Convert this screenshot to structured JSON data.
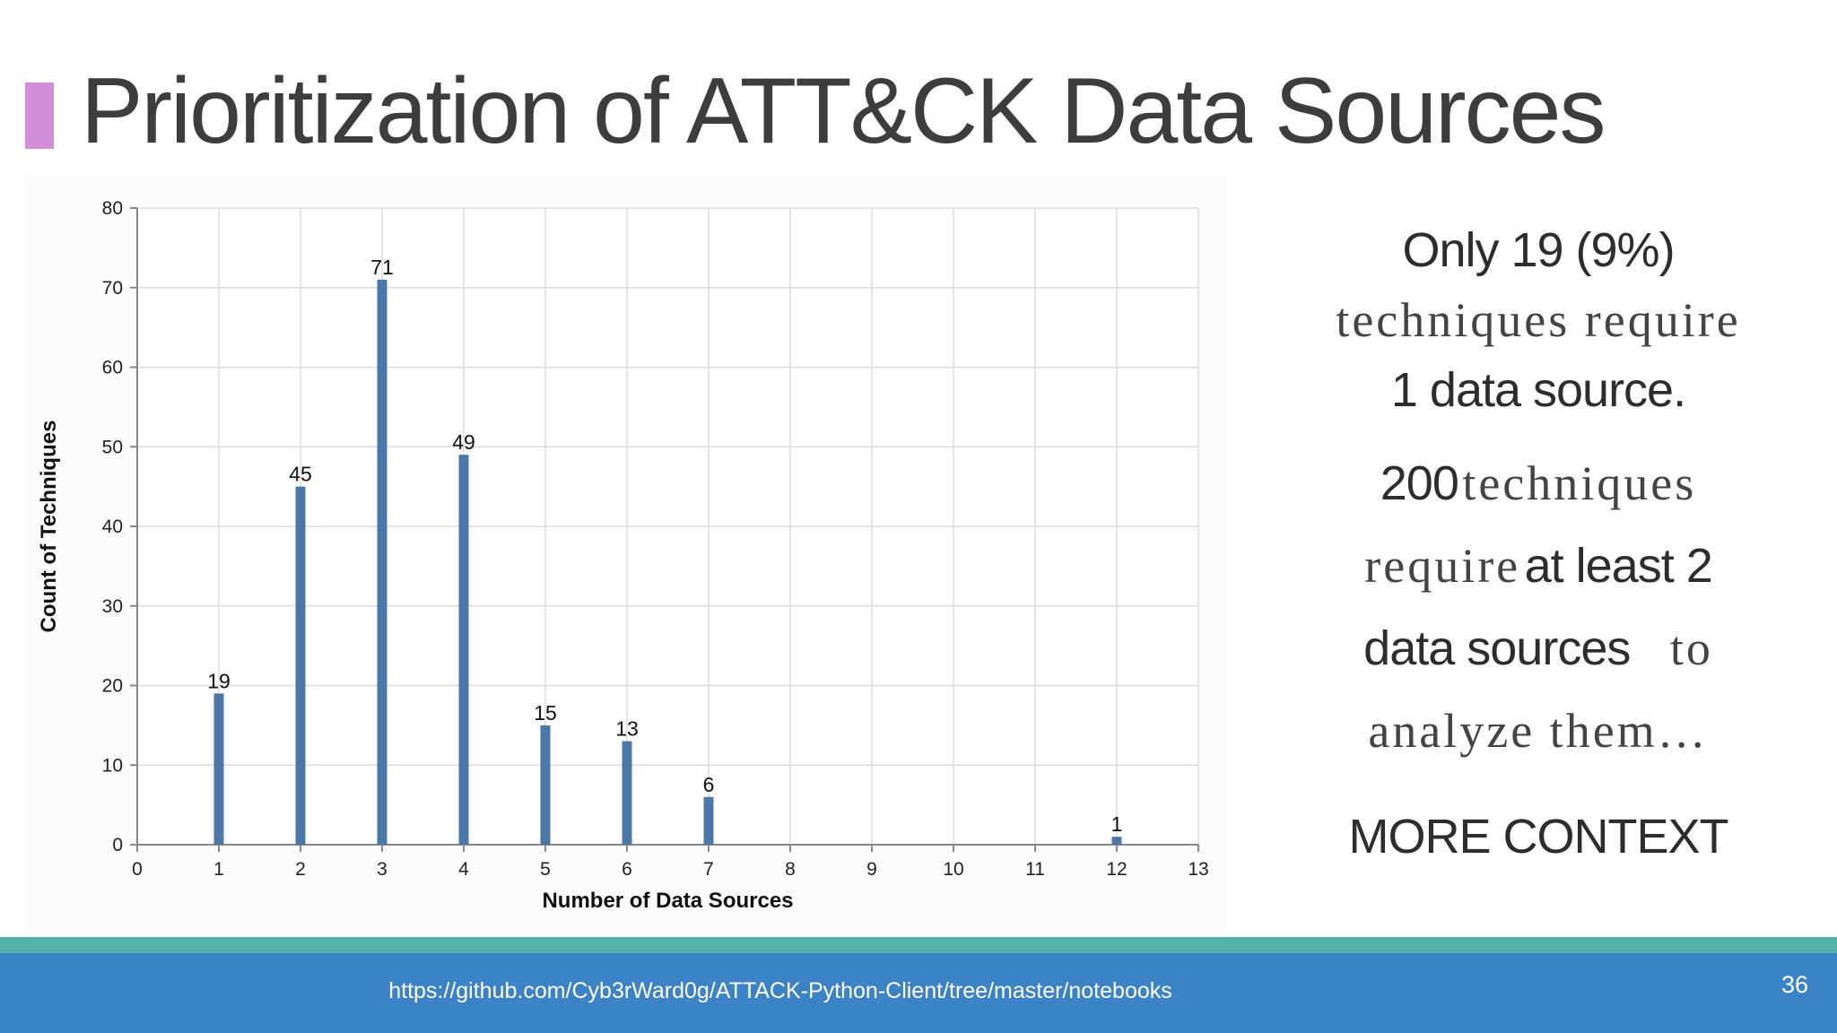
{
  "slide": {
    "title": "Prioritization of ATT&CK Data Sources",
    "accent_color": "#d28fd8",
    "side_text": {
      "l1": "Only 19 (9%)",
      "l2": "techniques require",
      "l3": "1 data source.",
      "l4a": "200",
      "l4b": "techniques",
      "l5a": "require",
      "l5b": "at least 2",
      "l6a": "data sources",
      "l6b": "to",
      "l7": "analyze them…",
      "l8": "MORE CONTEXT"
    },
    "footer_url": "https://github.com/Cyb3rWard0g/ATTACK-Python-Client/tree/master/notebooks",
    "page_number": "36",
    "footer_color": "#3b82c6",
    "stripe_color": "#52b1a8"
  },
  "chart_data": {
    "type": "bar",
    "title": "",
    "xlabel": "Number of Data Sources",
    "ylabel": "Count of Techniques",
    "x": [
      1,
      2,
      3,
      4,
      5,
      6,
      7,
      12
    ],
    "values": [
      19,
      45,
      71,
      49,
      15,
      13,
      6,
      1
    ],
    "xlim": [
      0,
      13
    ],
    "ylim": [
      0,
      80
    ],
    "xticks": [
      0,
      1,
      2,
      3,
      4,
      5,
      6,
      7,
      8,
      9,
      10,
      11,
      12,
      13
    ],
    "yticks": [
      0,
      10,
      20,
      30,
      40,
      50,
      60,
      70,
      80
    ],
    "grid": true,
    "bar_color": "#4c78a8",
    "data_labels": true
  }
}
